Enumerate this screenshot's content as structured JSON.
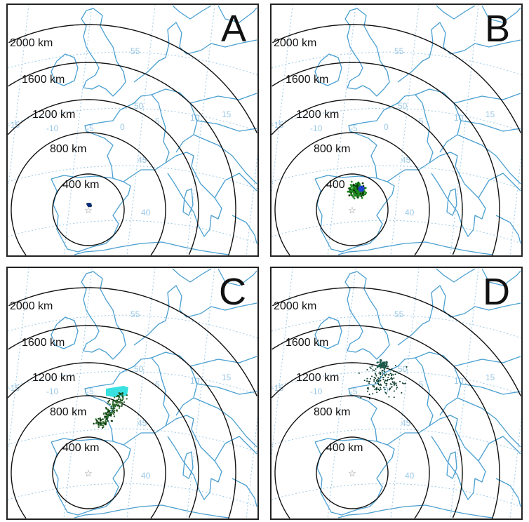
{
  "panels": [
    {
      "letter": "A",
      "cluster": "tight",
      "colors": [
        "#1a3a4a",
        "#0b2a80"
      ]
    },
    {
      "letter": "B",
      "cluster": "medium",
      "colors": [
        "#1f8a1f",
        "#2040d0",
        "#0a3a0a"
      ]
    },
    {
      "letter": "C",
      "cluster": "northward",
      "colors": [
        "#2f6a2f",
        "#38e0e0",
        "#0a3a0a"
      ]
    },
    {
      "letter": "D",
      "cluster": "scattered",
      "colors": [
        "#1e5a4a",
        "#0a3a2a"
      ]
    }
  ],
  "ring_labels": [
    "400 km",
    "800 km",
    "1200 km",
    "1600 km",
    "2000 km"
  ],
  "panel_b_400_label": "400",
  "graticule_labels": {
    "lat": [
      "55",
      "50",
      "45",
      "40"
    ],
    "lon": [
      "-15",
      "-10",
      "-5",
      "0",
      "5",
      "10",
      "15"
    ]
  },
  "colors": {
    "coastline": "#4a9fd0",
    "graticule": "#9cc8e6",
    "ring": "#111111",
    "star": "#888888"
  },
  "origin_marker": "star-icon"
}
